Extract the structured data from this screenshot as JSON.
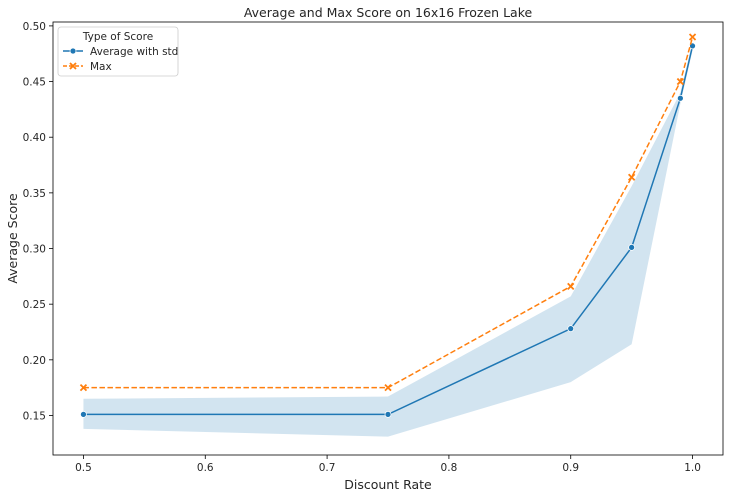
{
  "chart_data": {
    "type": "line",
    "title": "Average and Max Score on 16x16 Frozen Lake",
    "xlabel": "Discount Rate",
    "ylabel": "Average Score",
    "xlim": [
      0.475,
      1.025
    ],
    "ylim": [
      0.1145,
      0.5035
    ],
    "xticks": [
      0.5,
      0.6,
      0.7,
      0.8,
      0.9,
      1.0
    ],
    "xtick_labels": [
      "0.5",
      "0.6",
      "0.7",
      "0.8",
      "0.9",
      "1.0"
    ],
    "yticks": [
      0.15,
      0.2,
      0.25,
      0.3,
      0.35,
      0.4,
      0.45,
      0.5
    ],
    "ytick_labels": [
      "0.15",
      "0.20",
      "0.25",
      "0.30",
      "0.35",
      "0.40",
      "0.45",
      "0.50"
    ],
    "grid": false,
    "legend": {
      "title": "Type of Score",
      "placement": "top-left"
    },
    "x": [
      0.5,
      0.75,
      0.9,
      0.95,
      0.99,
      1.0
    ],
    "series": [
      {
        "name": "Average with std",
        "values": [
          0.151,
          0.151,
          0.228,
          0.301,
          0.435,
          0.482
        ],
        "band_lower": [
          0.138,
          0.131,
          0.18,
          0.214,
          0.43,
          0.478
        ],
        "band_upper": [
          0.165,
          0.167,
          0.257,
          0.356,
          0.44,
          0.486
        ],
        "color": "#1f77b4",
        "band_color": "#1f77b4",
        "marker": "circle",
        "line_style": "solid"
      },
      {
        "name": "Max",
        "values": [
          0.175,
          0.175,
          0.266,
          0.364,
          0.45,
          0.49
        ],
        "color": "#ff7f0e",
        "marker": "x",
        "line_style": "dashed"
      }
    ]
  }
}
